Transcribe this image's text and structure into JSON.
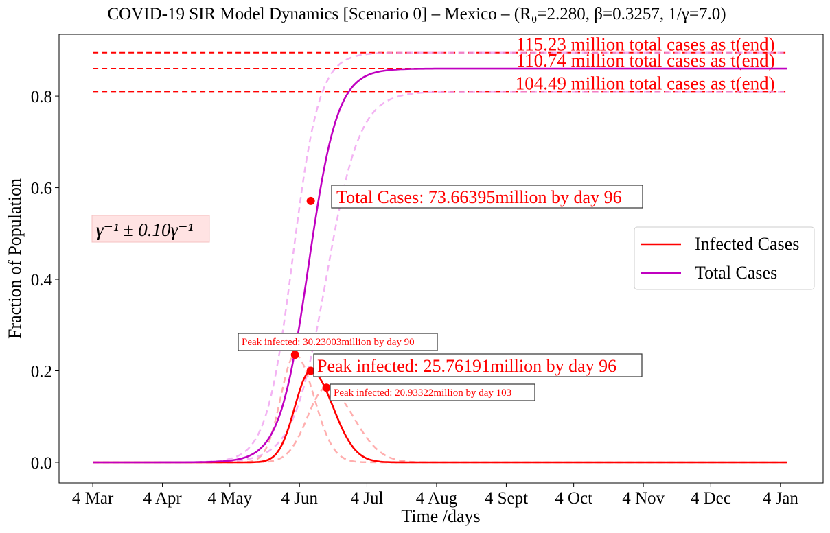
{
  "chart_data": {
    "type": "line",
    "title": "COVID-19 SIR Model Dynamics [Scenario 0] – Mexico – (R₀=2.280, β=0.3257, 1/γ=7.0)",
    "xlabel": "Time /days",
    "ylabel": "Fraction of Population",
    "x_ticks": [
      "4 Mar",
      "4 Apr",
      "4 May",
      "4 Jun",
      "4 Jul",
      "4 Aug",
      "4 Sept",
      "4 Oct",
      "4 Nov",
      "4 Dec",
      "4 Jan"
    ],
    "x_tick_days": [
      0,
      31,
      61,
      92,
      122,
      153,
      184,
      214,
      245,
      275,
      306
    ],
    "xlim": [
      -15,
      325
    ],
    "y_ticks": [
      "0.0",
      "0.2",
      "0.4",
      "0.6",
      "0.8"
    ],
    "y_tick_values": [
      0.0,
      0.2,
      0.4,
      0.6,
      0.8
    ],
    "ylim": [
      -0.045,
      0.935
    ],
    "x_end": 309,
    "legend": {
      "location": "center-right",
      "entries": [
        {
          "label": "Infected Cases",
          "color": "#ff0000"
        },
        {
          "label": "Total Cases",
          "color": "#c000c0"
        }
      ]
    },
    "series": [
      {
        "name": "Infected Cases",
        "role": "main",
        "color": "#ff0000",
        "peak_day": 97,
        "peak": 0.2,
        "width_left": 10,
        "width_right": 14
      },
      {
        "name": "Total Cases",
        "role": "main",
        "color": "#c000c0",
        "mid_day": 96,
        "final": 0.86,
        "rate": 0.155
      },
      {
        "role": "band",
        "color": "#ff9a9a",
        "peak_day": 90,
        "peak": 0.235,
        "width_left": 9,
        "width_right": 12
      },
      {
        "role": "band",
        "color": "#ff9a9a",
        "peak_day": 104,
        "peak": 0.163,
        "width_left": 12,
        "width_right": 17
      },
      {
        "role": "band",
        "color": "#f0a0f0",
        "mid_day": 89,
        "final": 0.895,
        "rate": 0.17
      },
      {
        "role": "band",
        "color": "#f0a0f0",
        "mid_day": 104,
        "final": 0.81,
        "rate": 0.135
      }
    ],
    "hlines": [
      {
        "y": 0.895,
        "label": "115.23 million total cases as t(end)"
      },
      {
        "y": 0.86,
        "label": "110.74 million total cases as t(end)"
      },
      {
        "y": 0.81,
        "label": "104.49 million total cases as t(end)"
      }
    ],
    "markers": [
      {
        "x": 97,
        "y": 0.571,
        "label": "Total Cases: 73.66395million by day 96"
      },
      {
        "x": 97,
        "y": 0.2,
        "label": "Peak infected: 25.76191million by day 96"
      },
      {
        "x": 90,
        "y": 0.235,
        "label": "Peak infected: 30.23003million by day 90"
      },
      {
        "x": 104,
        "y": 0.163,
        "label": "Peak infected: 20.93322million by day 103"
      }
    ],
    "note": "γ⁻¹ ± 0.10γ⁻¹"
  }
}
